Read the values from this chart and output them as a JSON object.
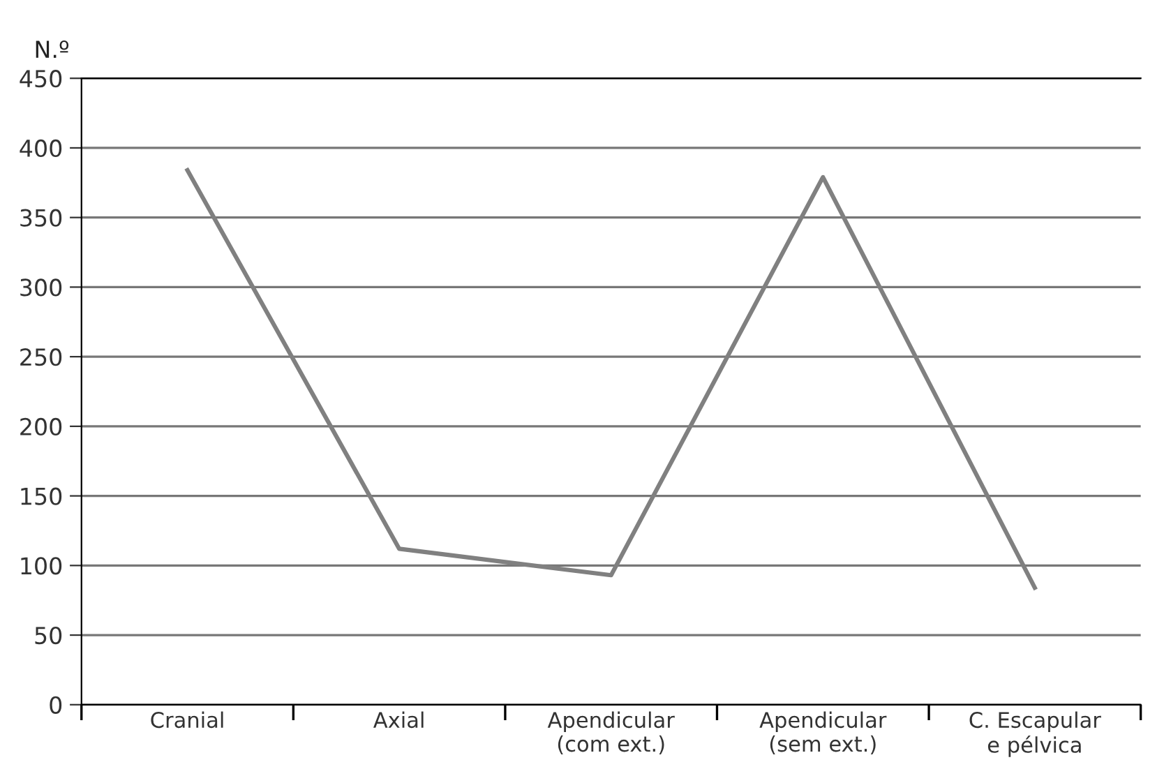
{
  "chart_data": {
    "type": "line",
    "ylabel": "N.º",
    "categories": [
      "Cranial",
      "Axial",
      "Apendicular\n(com ext.)",
      "Apendicular\n(sem ext.)",
      "C. Escapular\ne pélvica"
    ],
    "series": [
      {
        "color": "#808080",
        "values": [
          384,
          112,
          93,
          379,
          84
        ]
      }
    ],
    "ylim": [
      0,
      450
    ],
    "yticks": [
      0,
      50,
      100,
      150,
      200,
      250,
      300,
      350,
      400,
      450
    ],
    "grid": "y",
    "legend": false,
    "marker": "none",
    "line_style": "solid"
  }
}
